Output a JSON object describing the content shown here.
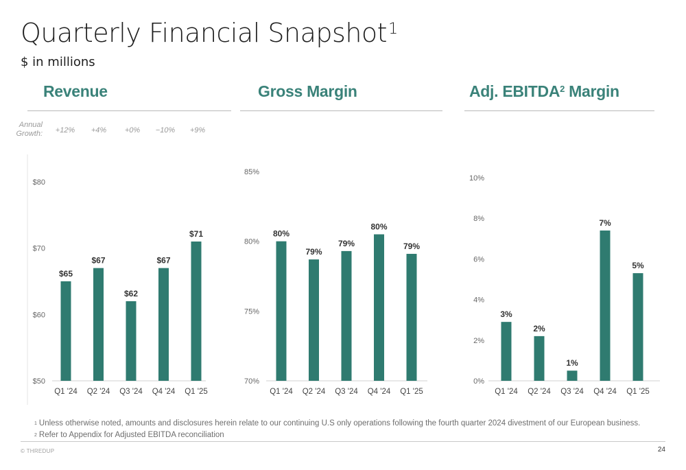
{
  "header": {
    "title": "Quarterly Financial Snapshot",
    "title_footnote": "1",
    "subtitle": "$ in millions"
  },
  "accent_color": "#3a8279",
  "bar_color": "#2f7b70",
  "revenue": {
    "heading": "Revenue",
    "growth_label_line1": "Annual",
    "growth_label_line2": "Growth:",
    "annual_growth": [
      "+12%",
      "+4%",
      "+0%",
      "−10%",
      "+9%"
    ]
  },
  "gross_margin": {
    "heading": "Gross Margin"
  },
  "ebitda": {
    "heading_pre": "Adj. EBITDA",
    "heading_sup": "2",
    "heading_post": " Margin"
  },
  "chart_data": [
    {
      "type": "bar",
      "title": "Revenue",
      "categories": [
        "Q1 '24",
        "Q2 '24",
        "Q3 '24",
        "Q4 '24",
        "Q1 '25"
      ],
      "values": [
        65,
        67,
        62,
        67,
        71
      ],
      "data_labels": [
        "$65",
        "$67",
        "$62",
        "$67",
        "$71"
      ],
      "ylim": [
        50,
        80
      ],
      "yticks": [
        50,
        60,
        70,
        80
      ],
      "ytick_labels": [
        "$50",
        "$60",
        "$70",
        "$80"
      ],
      "grid": false
    },
    {
      "type": "bar",
      "title": "Gross Margin",
      "categories": [
        "Q1 '24",
        "Q2 '24",
        "Q3 '24",
        "Q4 '24",
        "Q1 '25"
      ],
      "values": [
        80.0,
        78.7,
        79.3,
        80.5,
        79.1
      ],
      "data_labels": [
        "80%",
        "79%",
        "79%",
        "80%",
        "79%"
      ],
      "ylim": [
        70,
        85
      ],
      "yticks": [
        70,
        75,
        80,
        85
      ],
      "ytick_labels": [
        "70%",
        "75%",
        "80%",
        "85%"
      ],
      "grid": false
    },
    {
      "type": "bar",
      "title": "Adj. EBITDA Margin",
      "categories": [
        "Q1 '24",
        "Q2 '24",
        "Q3 '24",
        "Q4 '24",
        "Q1 '25"
      ],
      "values": [
        2.9,
        2.2,
        0.5,
        7.4,
        5.3
      ],
      "data_labels": [
        "3%",
        "2%",
        "1%",
        "7%",
        "5%"
      ],
      "ylim": [
        0,
        10
      ],
      "yticks": [
        0,
        2,
        4,
        6,
        8,
        10
      ],
      "ytick_labels": [
        "0%",
        "2%",
        "4%",
        "6%",
        "8%",
        "10%"
      ],
      "grid": false
    }
  ],
  "footnotes": [
    {
      "mark": "1",
      "text": "Unless otherwise noted, amounts and disclosures herein relate to our continuing U.S only operations following the fourth quarter 2024 divestment of our European business."
    },
    {
      "mark": "2",
      "text": "Refer to Appendix for Adjusted EBITDA reconciliation"
    }
  ],
  "footer": {
    "copyright": "© THREDUP",
    "page_number": "24"
  }
}
